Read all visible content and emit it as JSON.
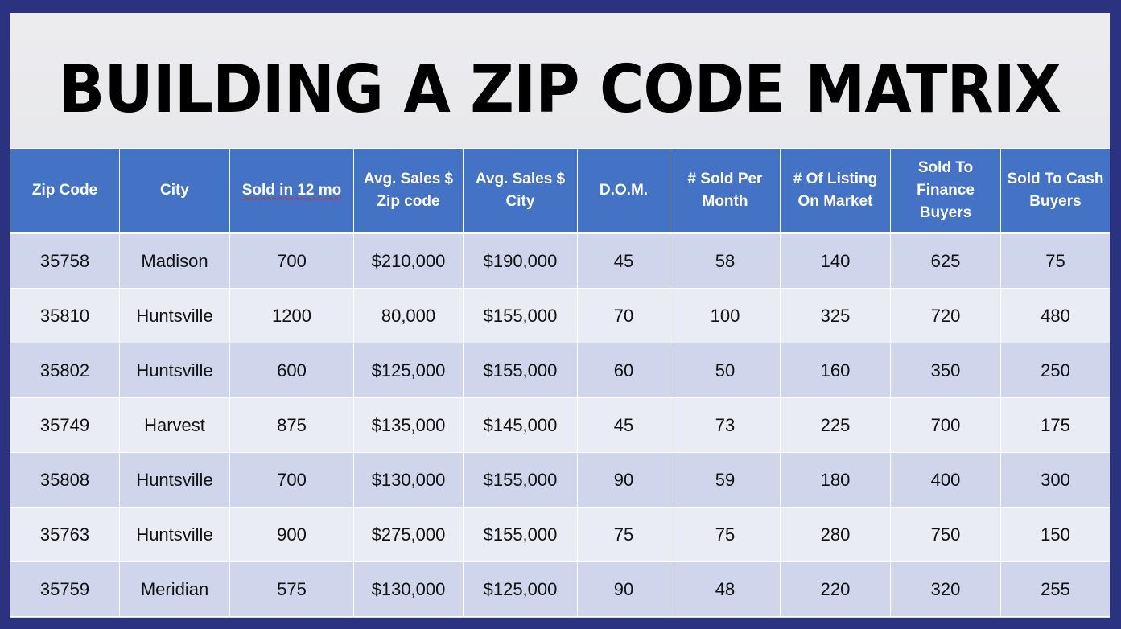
{
  "title": "BUILDING A ZIP CODE MATRIX",
  "table": {
    "headers": [
      "Zip Code",
      "City",
      "Sold in 12 mo",
      "Avg. Sales $ Zip code",
      "Avg. Sales $ City",
      "D.O.M.",
      "# Sold Per Month",
      "# Of Listing On Market",
      "Sold To Finance Buyers",
      "Sold To Cash Buyers"
    ],
    "rows": [
      [
        "35758",
        "Madison",
        "700",
        "$210,000",
        "$190,000",
        "45",
        "58",
        "140",
        "625",
        "75"
      ],
      [
        "35810",
        "Huntsville",
        "1200",
        "80,000",
        "$155,000",
        "70",
        "100",
        "325",
        "720",
        "480"
      ],
      [
        "35802",
        "Huntsville",
        "600",
        "$125,000",
        "$155,000",
        "60",
        "50",
        "160",
        "350",
        "250"
      ],
      [
        "35749",
        "Harvest",
        "875",
        "$135,000",
        "$145,000",
        "45",
        "73",
        "225",
        "700",
        "175"
      ],
      [
        "35808",
        "Huntsville",
        "700",
        "$130,000",
        "$155,000",
        "90",
        "59",
        "180",
        "400",
        "300"
      ],
      [
        "35763",
        "Huntsville",
        "900",
        "$275,000",
        "$155,000",
        "75",
        "75",
        "280",
        "750",
        "150"
      ],
      [
        "35759",
        "Meridian",
        "575",
        "$130,000",
        "$125,000",
        "90",
        "48",
        "220",
        "320",
        "255"
      ]
    ]
  },
  "colors": {
    "frame": "#2b3380",
    "header_bg": "#4472c4",
    "row_odd": "#cfd5ea",
    "row_even": "#e9ebf5"
  }
}
